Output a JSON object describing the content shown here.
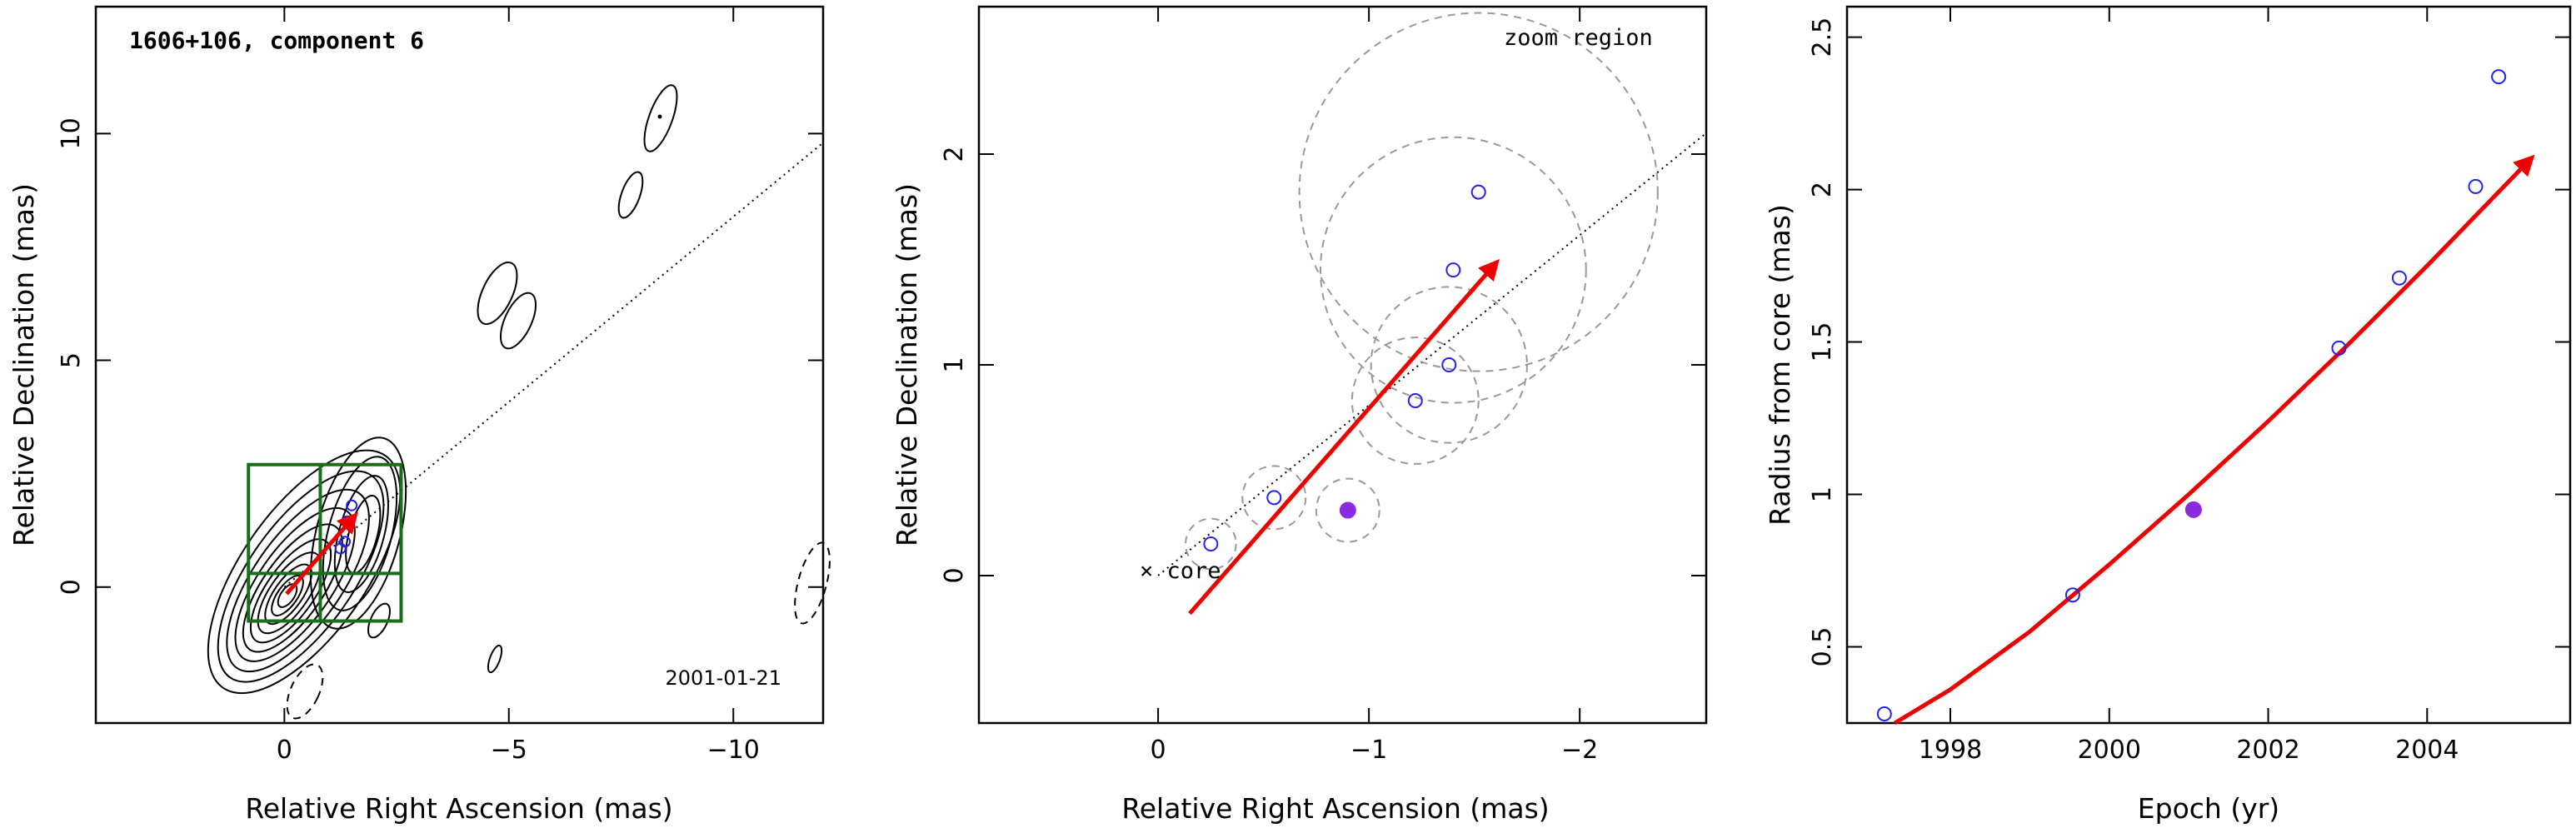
{
  "colors": {
    "arrow": "#ee0000",
    "open_point": "#2222ee",
    "filled_point": "#8a2be2",
    "box": "#1a6e1a",
    "circle": "#999999",
    "contour": "#000000"
  },
  "chart_data": [
    {
      "type": "contour",
      "title": "1606+106, component 6",
      "epoch_label": "2001-01-21",
      "xlabel": "Relative Right Ascension (mas)",
      "ylabel": "Relative Declination (mas)",
      "xlim": [
        4.2,
        -12.0
      ],
      "ylim": [
        -3.0,
        12.8
      ],
      "xticks": [
        0,
        -5,
        -10
      ],
      "xtick_labels": [
        "0",
        "−5",
        "−10"
      ],
      "yticks": [
        0,
        5,
        10
      ],
      "ytick_labels": [
        "0",
        "5",
        "10"
      ],
      "jet_line": {
        "x": [
          0,
          -12.0
        ],
        "y": [
          0,
          9.8
        ]
      },
      "velocity_arrow": {
        "x": [
          -0.05,
          -1.55
        ],
        "y": [
          -0.15,
          1.55
        ]
      },
      "points": [
        {
          "x": -1.5,
          "y": 1.8,
          "filled": false
        },
        {
          "x": -1.4,
          "y": 1.45,
          "filled": false
        },
        {
          "x": -1.35,
          "y": 1.0,
          "filled": false
        },
        {
          "x": -1.25,
          "y": 0.85,
          "filled": false
        }
      ],
      "boxes": [
        {
          "x": [
            0.8,
            -2.6
          ],
          "y": [
            -0.75,
            2.7
          ]
        }
      ],
      "box_dividers": {
        "x": -0.8,
        "y": 0.3
      }
    },
    {
      "type": "scatter",
      "xlabel": "Relative Right Ascension (mas)",
      "ylabel": "Relative Declination (mas)",
      "xlim": [
        0.85,
        -2.6
      ],
      "ylim": [
        -0.7,
        2.7
      ],
      "xticks": [
        0,
        -1,
        -2
      ],
      "xtick_labels": [
        "0",
        "−1",
        "−2"
      ],
      "yticks": [
        0,
        1,
        2
      ],
      "ytick_labels": [
        "0",
        "1",
        "2"
      ],
      "annotations": {
        "zoom": "zoom region",
        "core": "× core"
      },
      "jet_line": {
        "x": [
          0,
          -2.6
        ],
        "y": [
          0,
          2.1
        ]
      },
      "velocity_arrow": {
        "x": [
          -0.15,
          -1.6
        ],
        "y": [
          -0.18,
          1.48
        ]
      },
      "points": [
        {
          "x": -0.25,
          "y": 0.15,
          "r": 0.12,
          "filled": false
        },
        {
          "x": -0.55,
          "y": 0.37,
          "r": 0.15,
          "filled": false
        },
        {
          "x": -0.9,
          "y": 0.31,
          "r": 0.15,
          "filled": true
        },
        {
          "x": -1.22,
          "y": 0.83,
          "r": 0.3,
          "filled": false
        },
        {
          "x": -1.38,
          "y": 1.0,
          "r": 0.37,
          "filled": false
        },
        {
          "x": -1.4,
          "y": 1.45,
          "r": 0.63,
          "filled": false
        },
        {
          "x": -1.52,
          "y": 1.82,
          "r": 0.85,
          "filled": false
        }
      ]
    },
    {
      "type": "scatter",
      "xlabel": "Epoch (yr)",
      "ylabel": "Radius from core (mas)",
      "xlim": [
        1996.7,
        2005.8
      ],
      "ylim": [
        0.25,
        2.6
      ],
      "xticks": [
        1998,
        2000,
        2002,
        2004
      ],
      "xtick_labels": [
        "1998",
        "2000",
        "2002",
        "2004"
      ],
      "yticks": [
        0.5,
        1,
        1.5,
        2,
        2.5
      ],
      "ytick_labels": [
        "0.5",
        "1",
        "1.5",
        "2",
        "2.5"
      ],
      "series": [
        {
          "x": [
            1997.17,
            1999.54,
            2001.06,
            2002.89,
            2003.65,
            2004.61,
            2004.9
          ],
          "y": [
            0.28,
            0.67,
            0.95,
            1.48,
            1.71,
            2.01,
            2.37
          ],
          "filled": [
            false,
            false,
            true,
            false,
            false,
            false,
            false
          ]
        }
      ],
      "fit_arrow": {
        "x": [
          1997.3,
          1998.0,
          1999.0,
          2000.0,
          2001.0,
          2002.0,
          2003.0,
          2004.0,
          2005.3
        ],
        "y": [
          0.25,
          0.36,
          0.55,
          0.77,
          1.0,
          1.24,
          1.49,
          1.75,
          2.1
        ]
      }
    }
  ]
}
